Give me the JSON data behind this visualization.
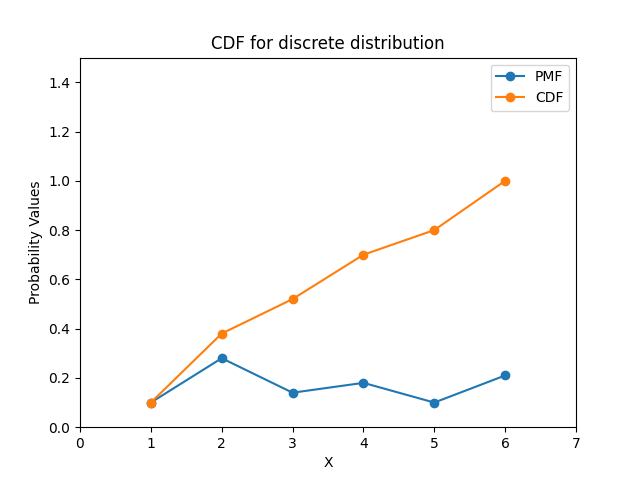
{
  "x": [
    1,
    2,
    3,
    4,
    5,
    6
  ],
  "pmf": [
    0.1,
    0.28,
    0.14,
    0.18,
    0.1,
    0.21
  ],
  "cdf": [
    0.1,
    0.38,
    0.52,
    0.7,
    0.8,
    1.0
  ],
  "title": "CDF for discrete distribution",
  "xlabel": "X",
  "ylabel": "Probability Values",
  "xlim": [
    0,
    7
  ],
  "ylim": [
    0,
    1.5
  ],
  "pmf_color": "#1f77b4",
  "cdf_color": "#ff7f0e",
  "pmf_label": "PMF",
  "cdf_label": "CDF",
  "marker": "o",
  "linewidth": 1.5,
  "figsize": [
    6.4,
    4.8
  ],
  "dpi": 100
}
